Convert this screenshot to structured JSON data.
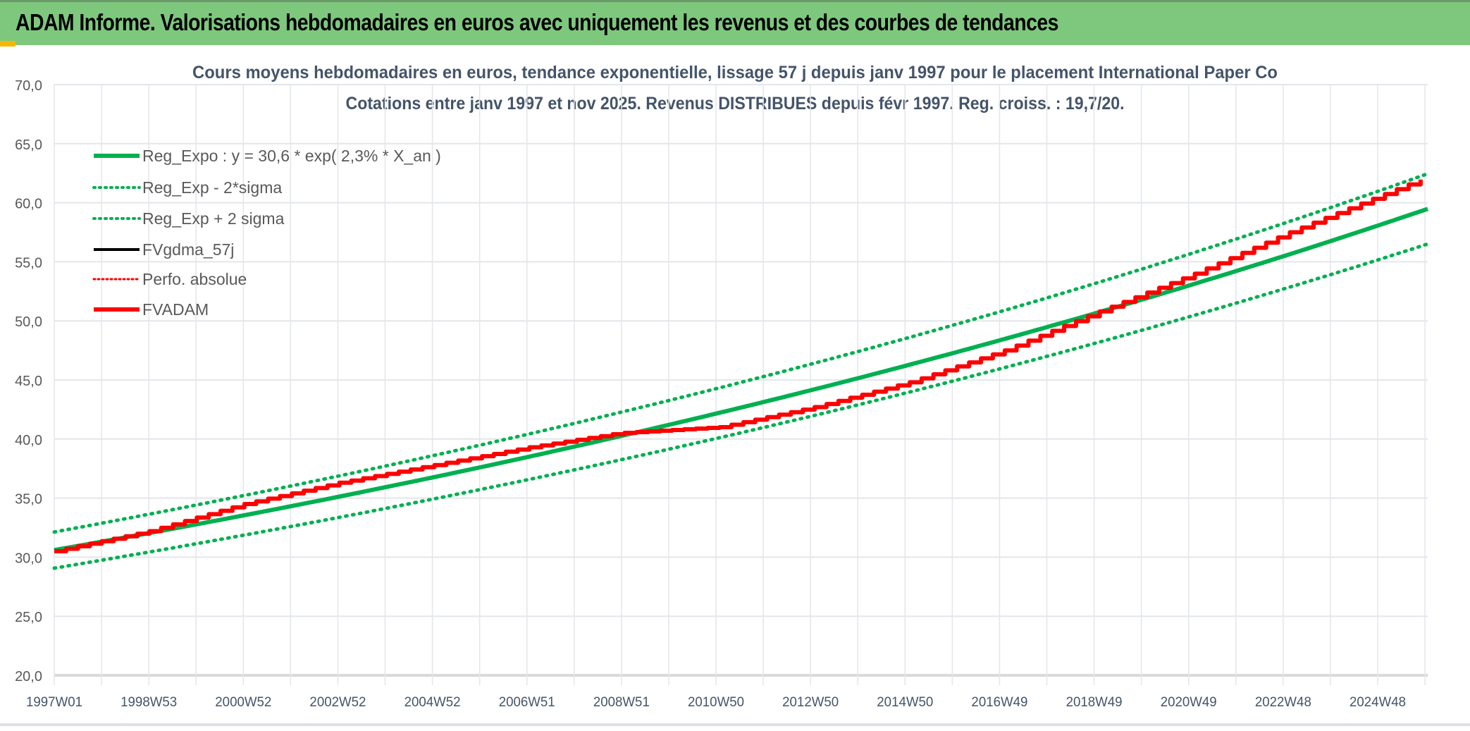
{
  "header": {
    "title": "ADAM Informe. Valorisations hebdomadaires en euros avec uniquement les revenus et des courbes de tendances"
  },
  "chart_data": {
    "type": "line",
    "title": "Cours moyens hebdomadaires en euros, tendance exponentielle, lissage 57 j depuis janv 1997 pour le placement International Paper Co",
    "subtitle": "Cotations entre janv 1997 et nov 2025. Revenus DISTRIBUES depuis févr 1997. Reg. croiss. : 19,7/20.",
    "xlabel": "",
    "ylabel": "",
    "ylim": [
      20,
      70
    ],
    "xlim": [
      1997.0,
      2025.9
    ],
    "y_ticks": [
      "70,0",
      "65,0",
      "60,0",
      "55,0",
      "50,0",
      "45,0",
      "40,0",
      "35,0",
      "30,0",
      "25,0",
      "20,0"
    ],
    "x_tick_labels": [
      "1997W01",
      "1998W53",
      "2000W52",
      "2002W52",
      "2004W52",
      "2006W51",
      "2008W51",
      "2010W50",
      "2012W50",
      "2014W50",
      "2016W49",
      "2018W49",
      "2020W49",
      "2022W48",
      "2024W48"
    ],
    "grid": true,
    "legend_position": "top-left",
    "regression": {
      "a": 30.6,
      "rate": 0.023,
      "band_factor": 0.05
    },
    "series": [
      {
        "name": "Reg_Expo : y = 30,6 * exp( 2,3% *  X_an )",
        "color": "#00b050",
        "style": "solid-thick"
      },
      {
        "name": "Reg_Exp - 2*sigma",
        "color": "#00b050",
        "style": "dotted"
      },
      {
        "name": "Reg_Exp + 2 sigma",
        "color": "#00b050",
        "style": "dotted"
      },
      {
        "name": "FVgdma_57j",
        "color": "#000000",
        "style": "solid"
      },
      {
        "name": "Perfo. absolue",
        "color": "#ff0000",
        "style": "dotted"
      },
      {
        "name": "FVADAM",
        "color": "#ff0000",
        "style": "solid-thick",
        "x": [
          1997.0,
          1999.0,
          2001.0,
          2003.0,
          2005.0,
          2007.0,
          2008.9,
          2011.0,
          2013.0,
          2015.0,
          2017.0,
          2019.0,
          2021.0,
          2023.0,
          2025.9
        ],
        "y": [
          30.5,
          32.2,
          34.5,
          36.3,
          37.8,
          39.3,
          40.5,
          41.0,
          42.7,
          44.8,
          47.5,
          50.8,
          54.0,
          57.5,
          62.2
        ]
      }
    ]
  }
}
